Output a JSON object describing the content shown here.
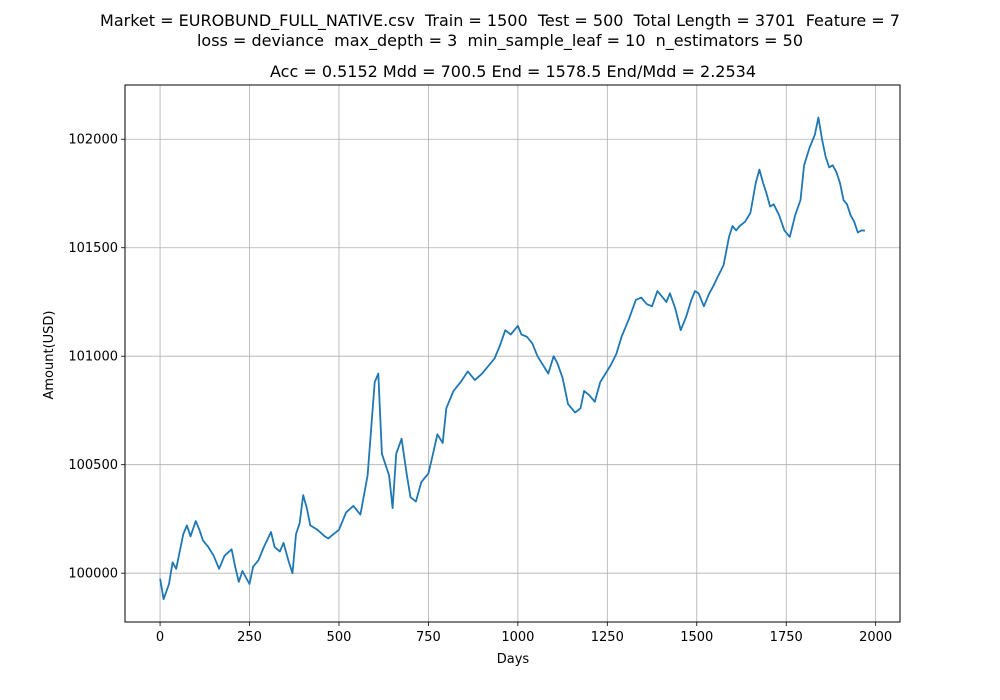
{
  "figure": {
    "suptitle_line1": "Market = EUROBUND_FULL_NATIVE.csv  Train = 1500  Test = 500  Total Length = 3701  Feature = 7",
    "suptitle_line2": "loss = deviance  max_depth = 3  min_sample_leaf = 10  n_estimators = 50"
  },
  "chart_data": {
    "type": "line",
    "title": "Acc = 0.5152  Mdd = 700.5  End = 1578.5  End/Mdd = 2.2534",
    "xlabel": "Days",
    "ylabel": "Amount(USD)",
    "xlim": [
      -98,
      2068
    ],
    "ylim": [
      99775,
      102250
    ],
    "xticks": [
      0,
      250,
      500,
      750,
      1000,
      1250,
      1500,
      1750,
      2000
    ],
    "yticks": [
      100000,
      100500,
      101000,
      101500,
      102000
    ],
    "grid": true,
    "line_color": "#1f77b4",
    "series": [
      {
        "x": [
          0,
          10,
          25,
          35,
          45,
          55,
          65,
          75,
          85,
          100,
          110,
          120,
          135,
          150,
          165,
          180,
          200,
          210,
          220,
          230,
          250,
          260,
          275,
          290,
          310,
          320,
          335,
          345,
          360,
          370,
          380,
          390,
          400,
          410,
          420,
          440,
          460,
          470,
          485,
          500,
          520,
          540,
          560,
          580,
          600,
          610,
          620,
          640,
          650,
          660,
          675,
          690,
          700,
          715,
          730,
          750,
          760,
          775,
          790,
          800,
          820,
          840,
          860,
          880,
          900,
          920,
          935,
          950,
          965,
          980,
          1000,
          1010,
          1025,
          1040,
          1055,
          1070,
          1085,
          1100,
          1110,
          1125,
          1140,
          1160,
          1175,
          1185,
          1200,
          1215,
          1230,
          1245,
          1260,
          1275,
          1290,
          1310,
          1330,
          1345,
          1360,
          1375,
          1390,
          1405,
          1415,
          1425,
          1440,
          1455,
          1470,
          1485,
          1495,
          1505,
          1520,
          1535,
          1545,
          1560,
          1575,
          1590,
          1600,
          1610,
          1620,
          1635,
          1650,
          1665,
          1675,
          1685,
          1695,
          1705,
          1715,
          1730,
          1745,
          1760,
          1775,
          1790,
          1800,
          1815,
          1830,
          1840,
          1850,
          1860,
          1870,
          1880,
          1890,
          1900,
          1910,
          1920,
          1930,
          1940,
          1950,
          1960,
          1970
        ],
        "y": [
          99975,
          99880,
          99950,
          100050,
          100020,
          100100,
          100180,
          100220,
          100170,
          100240,
          100200,
          100150,
          100120,
          100080,
          100020,
          100080,
          100110,
          100030,
          99960,
          100010,
          99950,
          100030,
          100060,
          100120,
          100190,
          100120,
          100100,
          100140,
          100050,
          100000,
          100180,
          100230,
          100360,
          100300,
          100220,
          100200,
          100170,
          100160,
          100180,
          100200,
          100280,
          100310,
          100270,
          100450,
          100880,
          100920,
          100550,
          100450,
          100300,
          100550,
          100620,
          100450,
          100350,
          100330,
          100420,
          100460,
          100530,
          100640,
          100600,
          100760,
          100840,
          100880,
          100930,
          100890,
          100920,
          100960,
          100990,
          101050,
          101120,
          101100,
          101140,
          101100,
          101090,
          101060,
          101000,
          100960,
          100920,
          101000,
          100970,
          100900,
          100780,
          100740,
          100760,
          100840,
          100820,
          100790,
          100880,
          100920,
          100960,
          101010,
          101090,
          101170,
          101260,
          101270,
          101240,
          101230,
          101300,
          101270,
          101250,
          101290,
          101220,
          101120,
          101180,
          101260,
          101300,
          101290,
          101230,
          101290,
          101320,
          101370,
          101420,
          101550,
          101600,
          101580,
          101600,
          101620,
          101660,
          101800,
          101860,
          101800,
          101750,
          101690,
          101700,
          101650,
          101580,
          101550,
          101650,
          101720,
          101880,
          101960,
          102020,
          102100,
          102000,
          101920,
          101870,
          101880,
          101850,
          101800,
          101720,
          101700,
          101650,
          101620,
          101570,
          101580,
          101578.5
        ]
      }
    ]
  }
}
